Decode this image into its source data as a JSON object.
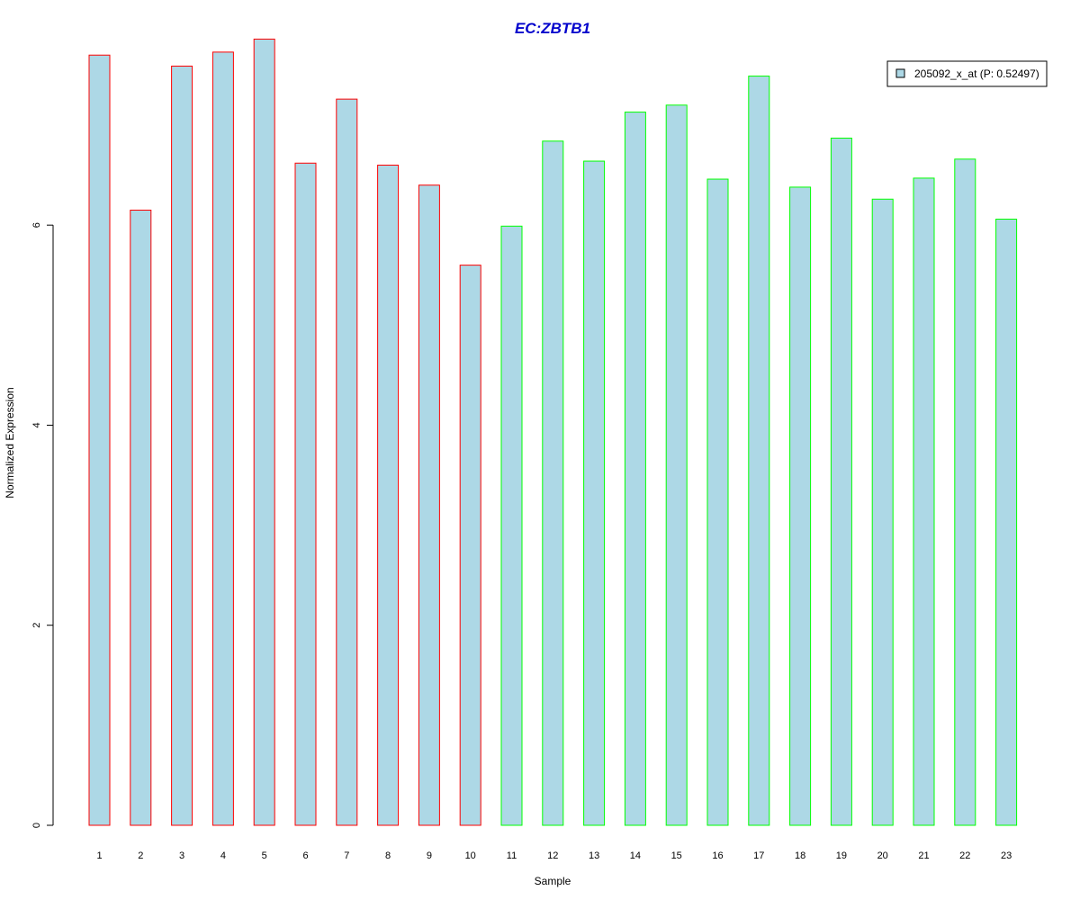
{
  "chart_data": {
    "type": "bar",
    "title": "EC:ZBTB1",
    "xlabel": "Sample",
    "ylabel": "Normalized Expression",
    "ylim": [
      0,
      7.9
    ],
    "yticks": [
      0,
      2,
      4,
      6
    ],
    "categories": [
      "1",
      "2",
      "3",
      "4",
      "5",
      "6",
      "7",
      "8",
      "9",
      "10",
      "11",
      "12",
      "13",
      "14",
      "15",
      "16",
      "17",
      "18",
      "19",
      "20",
      "21",
      "22",
      "23"
    ],
    "series": [
      {
        "name": "205092_x_at (P: 0.52497)",
        "values": [
          7.7,
          6.15,
          7.59,
          7.73,
          7.86,
          6.62,
          7.26,
          6.6,
          6.4,
          5.6,
          5.99,
          6.84,
          6.64,
          7.13,
          7.2,
          6.46,
          7.49,
          6.38,
          6.87,
          6.26,
          6.47,
          6.66,
          6.06
        ]
      }
    ],
    "group_edge_colors": [
      "#ff0000",
      "#ff0000",
      "#ff0000",
      "#ff0000",
      "#ff0000",
      "#ff0000",
      "#ff0000",
      "#ff0000",
      "#ff0000",
      "#ff0000",
      "#00ff00",
      "#00ff00",
      "#00ff00",
      "#00ff00",
      "#00ff00",
      "#00ff00",
      "#00ff00",
      "#00ff00",
      "#00ff00",
      "#00ff00",
      "#00ff00",
      "#00ff00",
      "#00ff00"
    ],
    "bar_fill": "#add8e6",
    "title_color": "#0000cc",
    "legend_position": "top-right",
    "grid": false
  }
}
